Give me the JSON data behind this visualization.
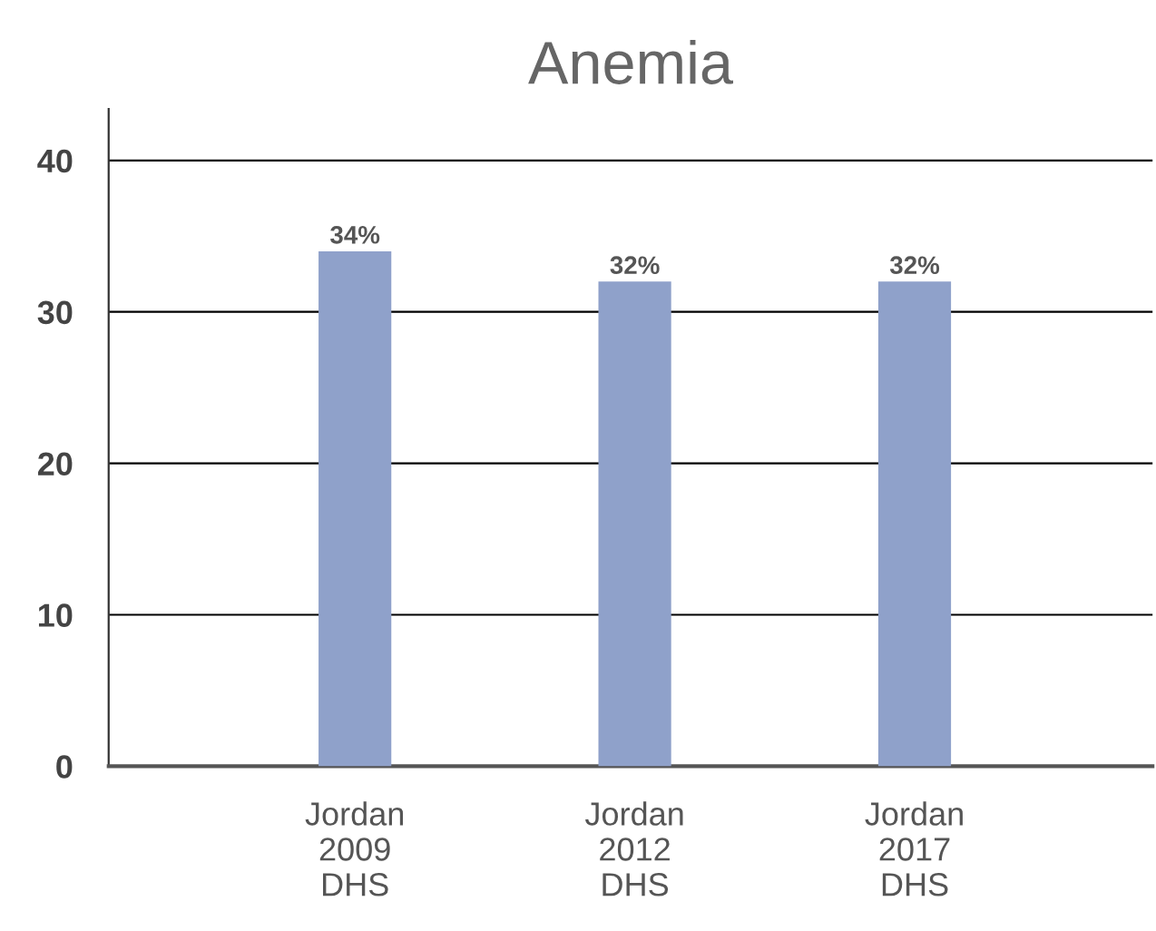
{
  "chart_data": {
    "type": "bar",
    "title": "Anemia",
    "categories": [
      "Jordan\n2009\nDHS",
      "Jordan\n2012\nDHS",
      "Jordan\n2017\nDHS"
    ],
    "values": [
      34,
      32,
      32
    ],
    "value_labels": [
      "34%",
      "32%",
      "32%"
    ],
    "color": "#8fa1ca",
    "ylim": [
      0,
      43.4
    ],
    "yticks": [
      0,
      10,
      20,
      30,
      40
    ],
    "grid": "y",
    "legend": false
  }
}
